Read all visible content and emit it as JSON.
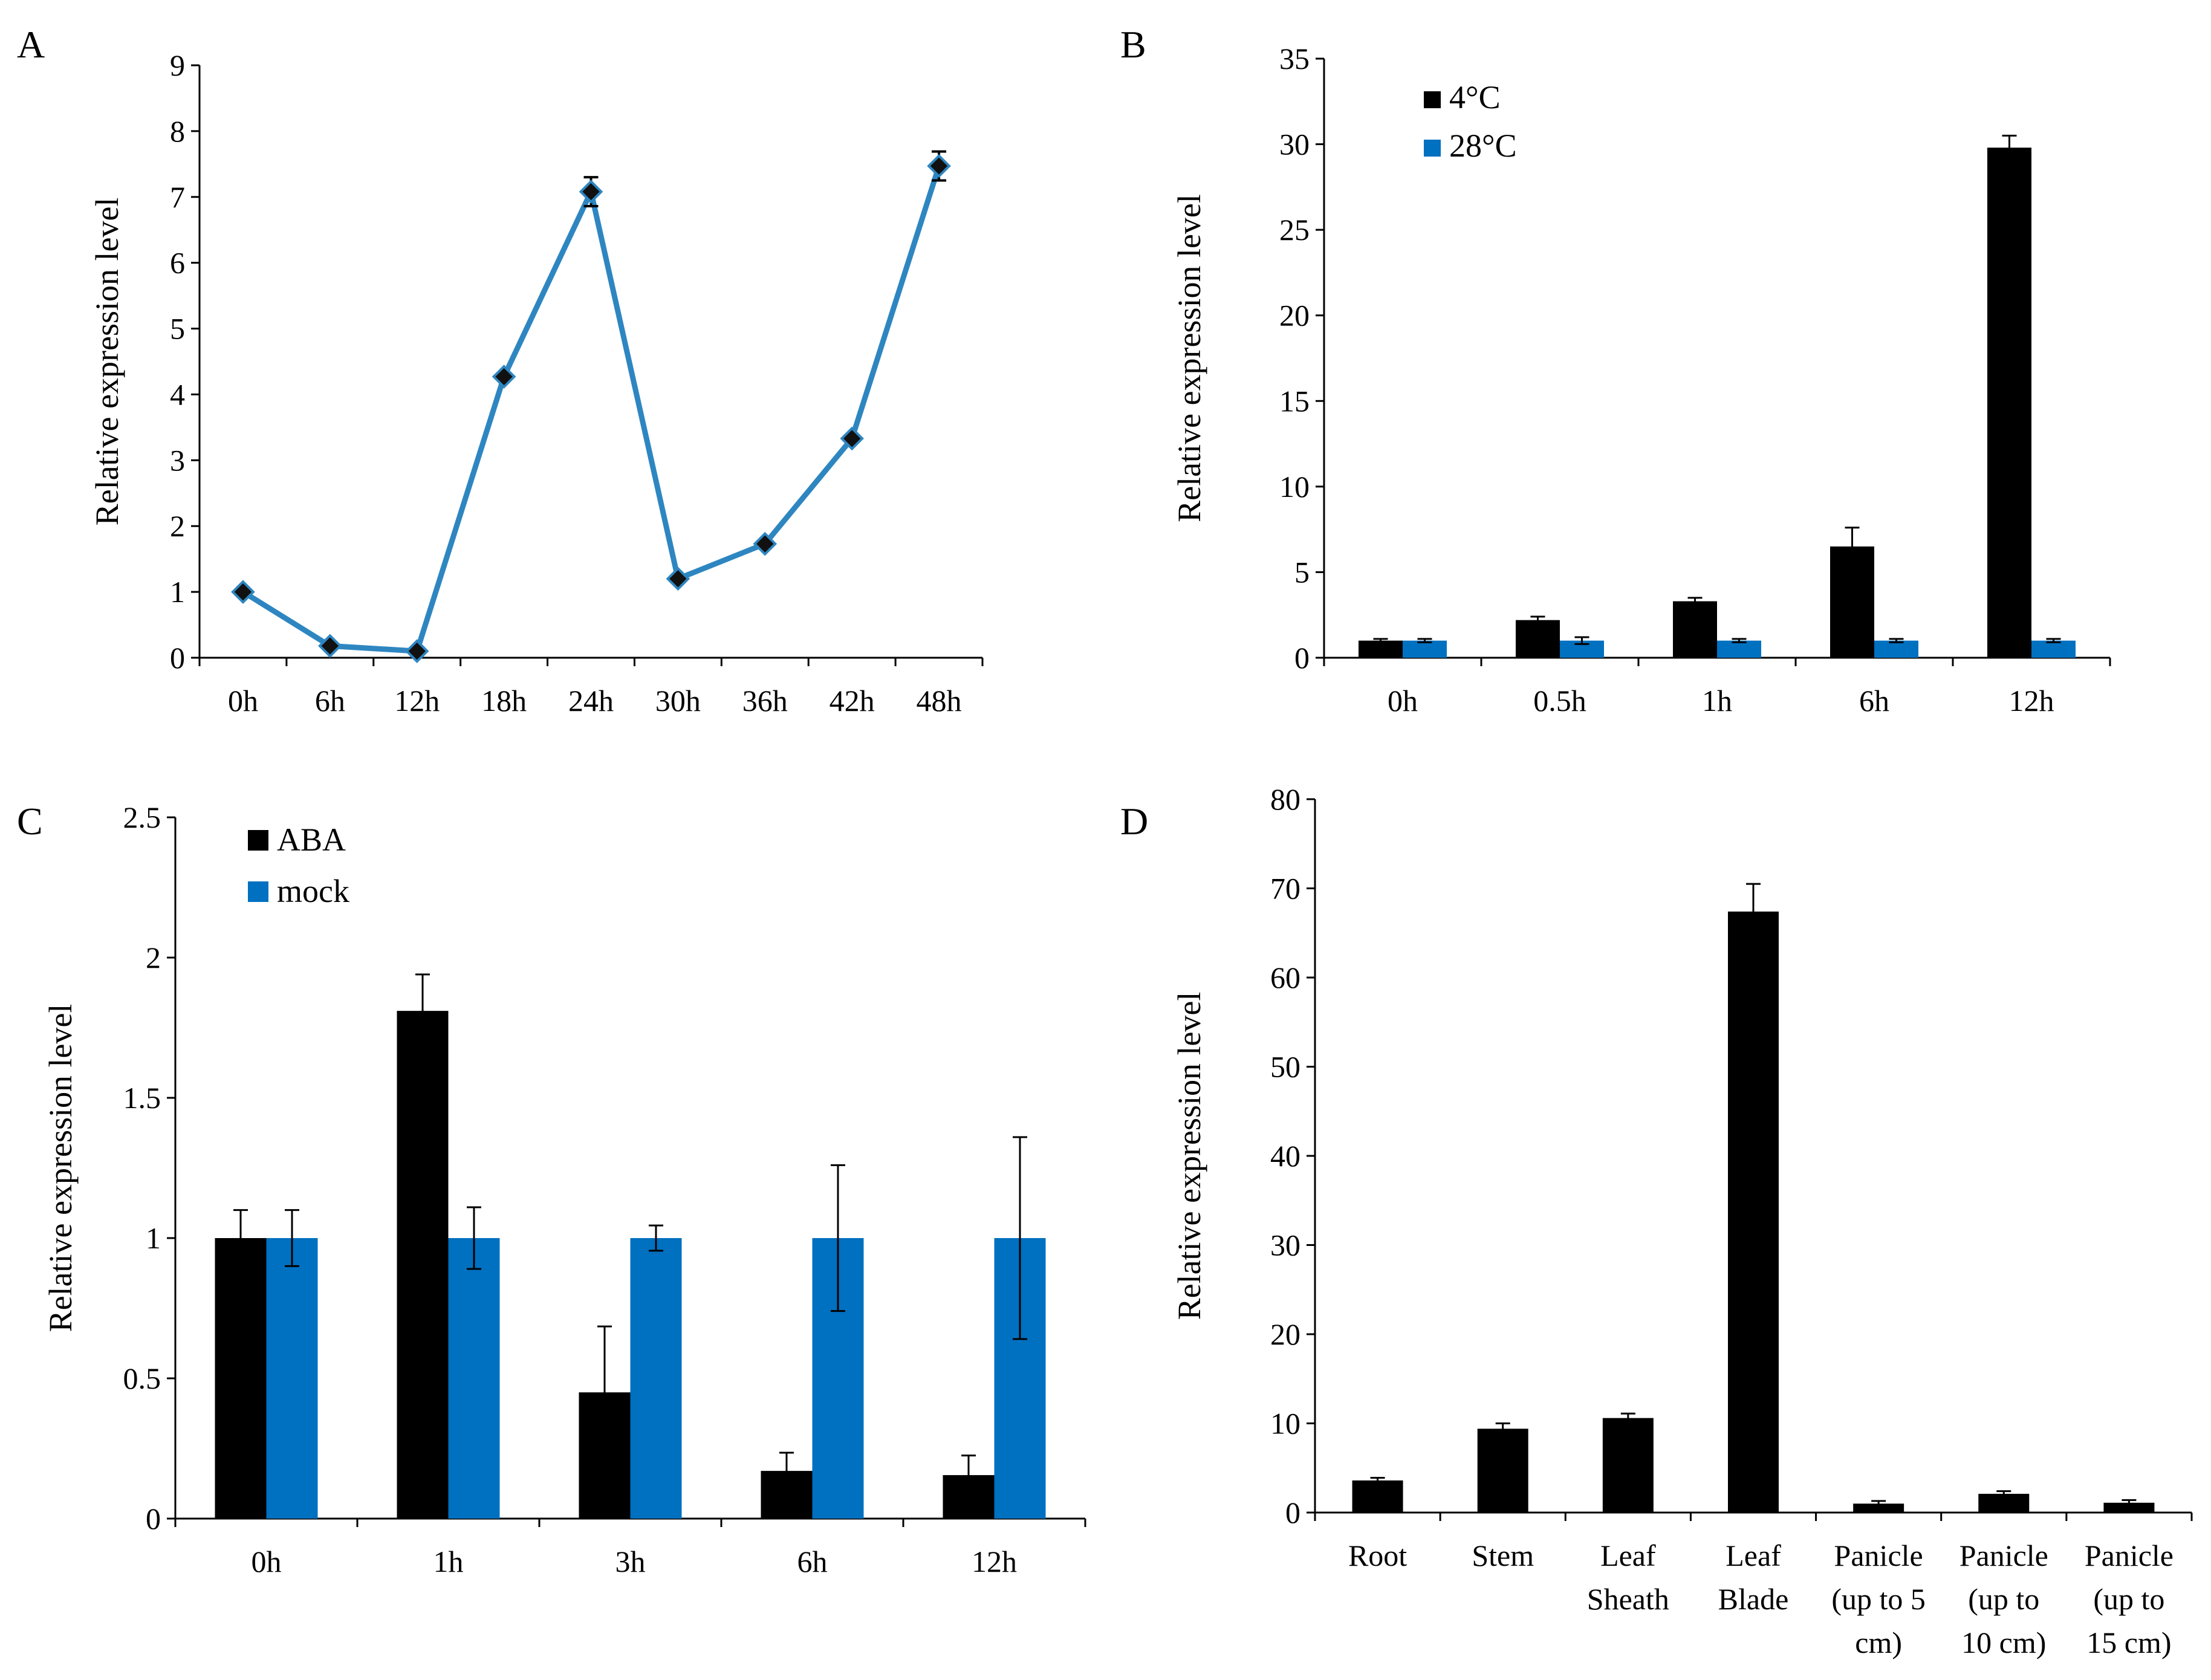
{
  "figure": {
    "panels": [
      "A",
      "B",
      "C",
      "D"
    ]
  },
  "colors": {
    "blue": "#0070C0",
    "line_blue": "#2E86C1",
    "black": "#000000"
  },
  "chart_data": [
    {
      "panel": "A",
      "type": "line",
      "ylabel": "Relative  expression level",
      "xlabel": "",
      "ylim": [
        0,
        9
      ],
      "yticks": [
        0,
        1,
        2,
        3,
        4,
        5,
        6,
        7,
        8,
        9
      ],
      "categories": [
        "0h",
        "6h",
        "12h",
        "18h",
        "24h",
        "30h",
        "36h",
        "42h",
        "48h"
      ],
      "series": [
        {
          "name": "expression",
          "values": [
            1.0,
            0.18,
            0.1,
            4.27,
            7.08,
            1.2,
            1.73,
            3.33,
            7.47
          ],
          "errors": [
            0.0,
            0.02,
            0.02,
            0.05,
            0.22,
            0.05,
            0.05,
            0.05,
            0.22
          ]
        }
      ]
    },
    {
      "panel": "B",
      "type": "bar",
      "ylabel": "Relative  expression level",
      "xlabel": "",
      "ylim": [
        0,
        35
      ],
      "yticks": [
        0,
        5,
        10,
        15,
        20,
        25,
        30,
        35
      ],
      "categories": [
        "0h",
        "0.5h",
        "1h",
        "6h",
        "12h"
      ],
      "legend_position": "top-left",
      "series": [
        {
          "name": "4°C",
          "values": [
            1.0,
            2.2,
            3.3,
            6.5,
            29.8
          ],
          "errors": [
            0.1,
            0.2,
            0.2,
            1.1,
            0.7
          ]
        },
        {
          "name": "28°C",
          "values": [
            1.0,
            1.0,
            1.0,
            1.0,
            1.0
          ],
          "errors": [
            0.1,
            0.2,
            0.1,
            0.1,
            0.1
          ]
        }
      ]
    },
    {
      "panel": "C",
      "type": "bar",
      "ylabel": "Relative  expression level",
      "xlabel": "",
      "ylim": [
        0,
        2.5
      ],
      "yticks": [
        "0",
        "0.5",
        "1",
        "1.5",
        "2",
        "2.5"
      ],
      "categories": [
        "0h",
        "1h",
        "3h",
        "6h",
        "12h"
      ],
      "legend_position": "top-left",
      "series": [
        {
          "name": "ABA",
          "values": [
            1.0,
            1.81,
            0.45,
            0.17,
            0.155
          ],
          "errors": [
            0.1,
            0.13,
            0.235,
            0.065,
            0.07
          ]
        },
        {
          "name": "mock",
          "values": [
            1.0,
            1.0,
            1.0,
            1.0,
            1.0
          ],
          "errors": [
            0.1,
            0.11,
            0.045,
            0.26,
            0.36
          ]
        }
      ]
    },
    {
      "panel": "D",
      "type": "bar",
      "ylabel": "Relative  expression level",
      "xlabel": "",
      "ylim": [
        0,
        80
      ],
      "yticks": [
        0,
        10,
        20,
        30,
        40,
        50,
        60,
        70,
        80
      ],
      "categories": [
        [
          "Root"
        ],
        [
          "Stem"
        ],
        [
          "Leaf",
          "Sheath"
        ],
        [
          "Leaf",
          "Blade"
        ],
        [
          "Panicle",
          "(up to 5",
          "cm)"
        ],
        [
          "Panicle",
          "(up to",
          "10 cm)"
        ],
        [
          "Panicle",
          "(up to",
          "15 cm)"
        ]
      ],
      "series": [
        {
          "name": "expression",
          "values": [
            3.6,
            9.4,
            10.6,
            67.4,
            1.0,
            2.1,
            1.1
          ],
          "errors": [
            0.3,
            0.6,
            0.5,
            3.1,
            0.3,
            0.3,
            0.3
          ]
        }
      ]
    }
  ]
}
